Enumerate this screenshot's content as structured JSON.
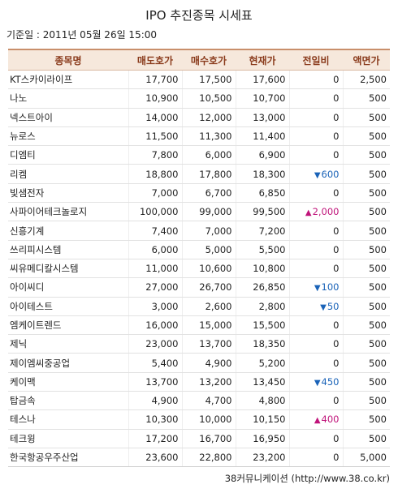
{
  "title": "IPO 추진종목 시세표",
  "base_date": "기준일 : 2011년 05월 26일 15:00",
  "columns": [
    "종목명",
    "매도호가",
    "매수호가",
    "현재가",
    "전일비",
    "액면가"
  ],
  "rows": [
    {
      "name": "KT스카이라이프",
      "ask": "17,700",
      "bid": "17,500",
      "price": "17,600",
      "change": "0",
      "dir": "none",
      "face": "2,500"
    },
    {
      "name": "나노",
      "ask": "10,900",
      "bid": "10,500",
      "price": "10,700",
      "change": "0",
      "dir": "none",
      "face": "500"
    },
    {
      "name": "넥스트아이",
      "ask": "14,000",
      "bid": "12,000",
      "price": "13,000",
      "change": "0",
      "dir": "none",
      "face": "500"
    },
    {
      "name": "뉴로스",
      "ask": "11,500",
      "bid": "11,300",
      "price": "11,400",
      "change": "0",
      "dir": "none",
      "face": "500"
    },
    {
      "name": "디엠티",
      "ask": "7,800",
      "bid": "6,000",
      "price": "6,900",
      "change": "0",
      "dir": "none",
      "face": "500"
    },
    {
      "name": "리켐",
      "ask": "18,800",
      "bid": "17,800",
      "price": "18,300",
      "change": "600",
      "dir": "down",
      "face": "500"
    },
    {
      "name": "빛샘전자",
      "ask": "7,000",
      "bid": "6,700",
      "price": "6,850",
      "change": "0",
      "dir": "none",
      "face": "500"
    },
    {
      "name": "사파이어테크놀로지",
      "ask": "100,000",
      "bid": "99,000",
      "price": "99,500",
      "change": "2,000",
      "dir": "up",
      "face": "500"
    },
    {
      "name": "신흥기계",
      "ask": "7,400",
      "bid": "7,000",
      "price": "7,200",
      "change": "0",
      "dir": "none",
      "face": "500"
    },
    {
      "name": "쓰리피시스템",
      "ask": "6,000",
      "bid": "5,000",
      "price": "5,500",
      "change": "0",
      "dir": "none",
      "face": "500"
    },
    {
      "name": "씨유메디칼시스템",
      "ask": "11,000",
      "bid": "10,600",
      "price": "10,800",
      "change": "0",
      "dir": "none",
      "face": "500"
    },
    {
      "name": "아이씨디",
      "ask": "27,000",
      "bid": "26,700",
      "price": "26,850",
      "change": "100",
      "dir": "down",
      "face": "500"
    },
    {
      "name": "아이테스트",
      "ask": "3,000",
      "bid": "2,600",
      "price": "2,800",
      "change": "50",
      "dir": "down",
      "face": "500"
    },
    {
      "name": "엠케이트렌드",
      "ask": "16,000",
      "bid": "15,000",
      "price": "15,500",
      "change": "0",
      "dir": "none",
      "face": "500"
    },
    {
      "name": "제닉",
      "ask": "23,000",
      "bid": "13,700",
      "price": "18,350",
      "change": "0",
      "dir": "none",
      "face": "500"
    },
    {
      "name": "제이엠씨중공업",
      "ask": "5,400",
      "bid": "4,900",
      "price": "5,200",
      "change": "0",
      "dir": "none",
      "face": "500"
    },
    {
      "name": "케이맥",
      "ask": "13,700",
      "bid": "13,200",
      "price": "13,450",
      "change": "450",
      "dir": "down",
      "face": "500"
    },
    {
      "name": "탑금속",
      "ask": "4,900",
      "bid": "4,700",
      "price": "4,800",
      "change": "0",
      "dir": "none",
      "face": "500"
    },
    {
      "name": "테스나",
      "ask": "10,300",
      "bid": "10,000",
      "price": "10,150",
      "change": "400",
      "dir": "up",
      "face": "500"
    },
    {
      "name": "테크윙",
      "ask": "17,200",
      "bid": "16,700",
      "price": "16,950",
      "change": "0",
      "dir": "none",
      "face": "500"
    },
    {
      "name": "한국항공우주산업",
      "ask": "23,600",
      "bid": "22,800",
      "price": "23,200",
      "change": "0",
      "dir": "none",
      "face": "5,000"
    }
  ],
  "arrows": {
    "up": "▲",
    "down": "▼"
  },
  "source": "38커뮤니케이션 (http://www.38.co.kr)"
}
